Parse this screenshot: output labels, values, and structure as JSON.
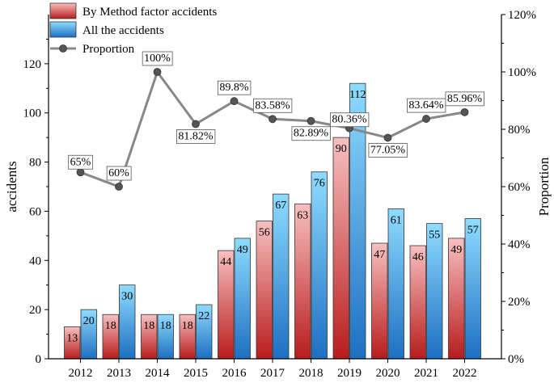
{
  "chart_data": {
    "type": "bar+line",
    "categories": [
      "2012",
      "2013",
      "2014",
      "2015",
      "2016",
      "2017",
      "2018",
      "2019",
      "2020",
      "2021",
      "2022"
    ],
    "series": [
      {
        "name": "By Method factor accidents",
        "type": "bar",
        "axis": "left",
        "values": [
          13,
          18,
          18,
          18,
          44,
          56,
          63,
          90,
          47,
          46,
          49
        ],
        "labels": [
          "13",
          "18",
          "18",
          "18",
          "44",
          "56",
          "63",
          "90",
          "47",
          "46",
          "49"
        ]
      },
      {
        "name": "All the accidents",
        "type": "bar",
        "axis": "left",
        "values": [
          20,
          30,
          18,
          22,
          49,
          67,
          76,
          112,
          61,
          55,
          57
        ],
        "labels": [
          "20",
          "30",
          "18",
          "22",
          "49",
          "67",
          "76",
          "112",
          "61",
          "55",
          "57"
        ]
      },
      {
        "name": "Proportion",
        "type": "line",
        "axis": "right",
        "values": [
          65,
          60,
          100,
          81.82,
          89.8,
          83.58,
          82.89,
          80.36,
          77.05,
          83.64,
          85.96
        ],
        "labels": [
          "65%",
          "60%",
          "100%",
          "81.82%",
          "89.8%",
          "83.58%",
          "82.89%",
          "80.36%",
          "77.05%",
          "83.64%",
          "85.96%"
        ]
      }
    ],
    "ylabel": "accidents",
    "ylabel_right": "Proportion",
    "ylim": [
      0,
      140
    ],
    "ylim_right": [
      0,
      120
    ],
    "yticks": [
      "0",
      "20",
      "40",
      "60",
      "80",
      "100",
      "120"
    ],
    "yticks_right": [
      "0%",
      "20%",
      "40%",
      "60%",
      "80%",
      "100%",
      "120%"
    ],
    "legend": "top-left",
    "grid": false,
    "colors": {
      "method_top": "#f8c0c0",
      "method_bottom": "#b81c1c",
      "all_top": "#8fdcff",
      "all_bottom": "#1d6fc2",
      "line": "#888888",
      "marker": "#555555"
    }
  }
}
